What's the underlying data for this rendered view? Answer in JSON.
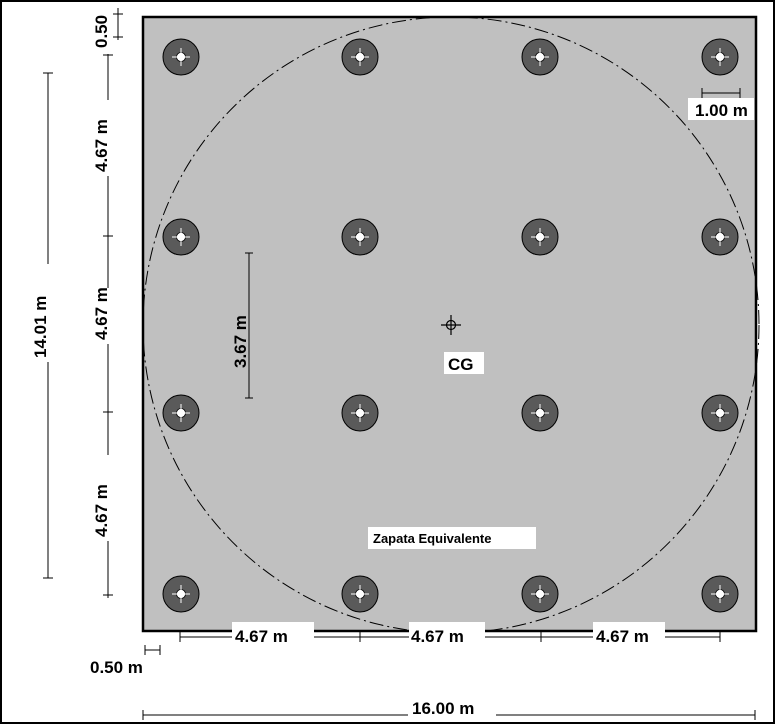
{
  "labels": {
    "top_offset": "0.50",
    "left_spacing_1": "4.67 m",
    "left_spacing_2": "4.67 m",
    "left_spacing_3": "4.67 m",
    "overall_height": "14.01 m",
    "inner_dim": "3.67 m",
    "pile_diameter": "1.00 m",
    "cg": "CG",
    "equivalent_footing": "Zapata Equivalente",
    "bottom_offset": "0.50 m",
    "bottom_spacing_1": "4.67 m",
    "bottom_spacing_2": "4.67 m",
    "bottom_spacing_3": "4.67 m",
    "overall_width": "16.00 m"
  },
  "colors": {
    "cap_fill": "#c0c0c0",
    "pile_fill": "#5a5a5a",
    "line": "#000000"
  },
  "piles": {
    "columns": 4,
    "rows": 4
  }
}
